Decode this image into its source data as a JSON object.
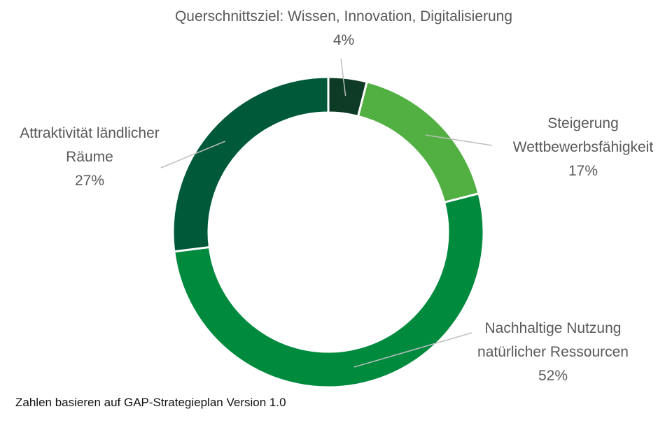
{
  "chart_data": {
    "type": "pie",
    "donut": true,
    "categories": [
      "Querschnittsziel: Wissen, Innovation, Digitalisierung",
      "Steigerung Wettbewerbsfähigkeit",
      "Nachhaltige Nutzung natürlicher Ressourcen",
      "Attraktivität ländlicher Räume"
    ],
    "label_lines": [
      [
        "Querschnittsziel: Wissen, Innovation, Digitalisierung"
      ],
      [
        "Steigerung",
        "Wettbewerbsfähigkeit"
      ],
      [
        "Nachhaltige Nutzung",
        "natürlicher Ressourcen"
      ],
      [
        "Attraktivität ländlicher",
        "Räume"
      ]
    ],
    "values": [
      4,
      17,
      52,
      27
    ],
    "value_labels": [
      "4%",
      "17%",
      "52%",
      "27%"
    ],
    "colors": [
      "#0d3b25",
      "#52b043",
      "#008a3e",
      "#005a3a"
    ],
    "legend": "none"
  },
  "footnote": "Zahlen basieren auf GAP-Strategieplan Version 1.0"
}
